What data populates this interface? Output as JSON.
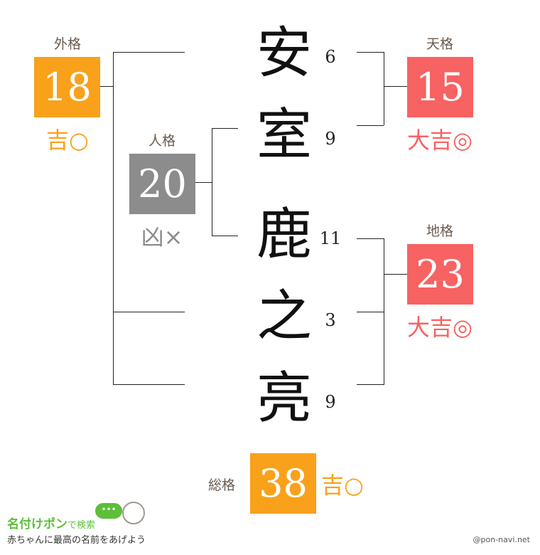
{
  "colors": {
    "kichi": "#f9a11b",
    "daikichi": "#f76262",
    "kyo": "#8c8c8c",
    "label": "#6b5a4e"
  },
  "name": [
    {
      "char": "安",
      "strokes": "6"
    },
    {
      "char": "室",
      "strokes": "9"
    },
    {
      "char": "鹿",
      "strokes": "11"
    },
    {
      "char": "之",
      "strokes": "3"
    },
    {
      "char": "亮",
      "strokes": "9"
    }
  ],
  "gaikaku": {
    "label": "外格",
    "value": "18",
    "result": "吉○"
  },
  "jinkaku": {
    "label": "人格",
    "value": "20",
    "result": "凶×"
  },
  "tenkaku": {
    "label": "天格",
    "value": "15",
    "result": "大吉◎"
  },
  "chikaku": {
    "label": "地格",
    "value": "23",
    "result": "大吉◎"
  },
  "soukaku": {
    "label": "総格",
    "value": "38",
    "result": "吉○"
  },
  "footer": {
    "logo": "名付けポン",
    "logo_suffix": "で検索",
    "tagline": "赤ちゃんに最高の名前をあげよう",
    "credit": "@pon-navi.net"
  }
}
